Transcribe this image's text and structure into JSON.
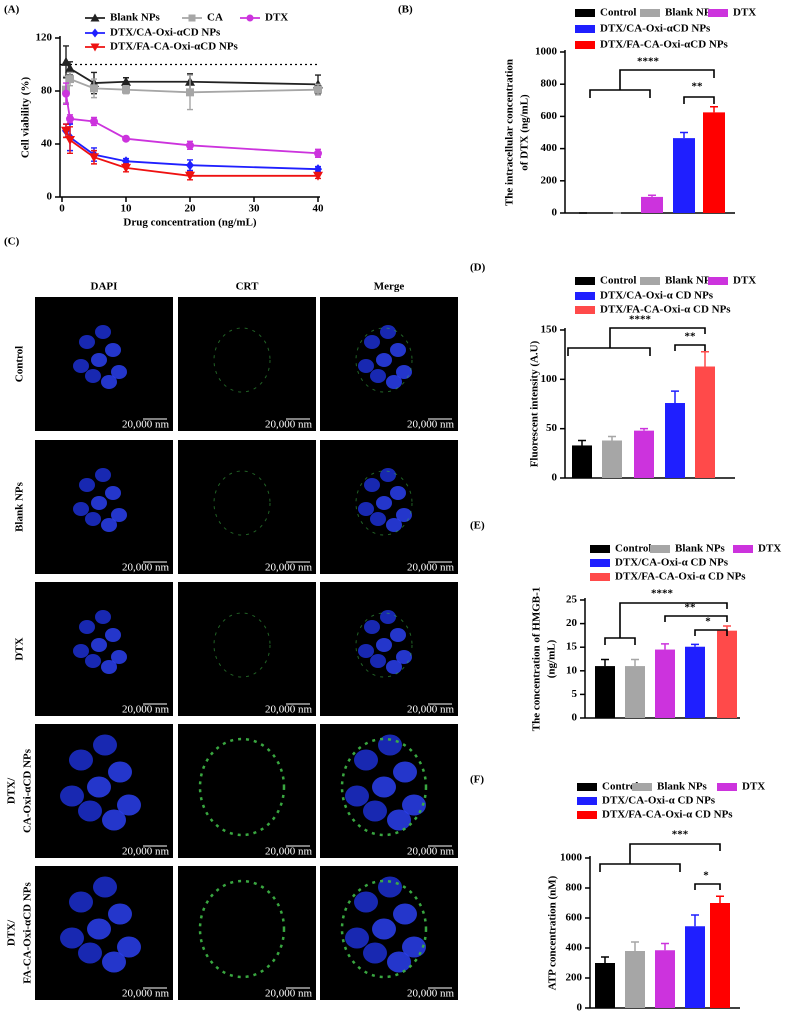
{
  "chart_data": [
    {
      "type": "line",
      "panel_label": "(A)",
      "xlabel": "Drug concentration (ng/mL)",
      "ylabel": "Cell viability (%)",
      "x": [
        0.625,
        1.25,
        5,
        10,
        20,
        40
      ],
      "xlim": [
        0,
        40
      ],
      "xticks": [
        0,
        10,
        20,
        30,
        40
      ],
      "ylim": [
        0,
        120
      ],
      "yticks": [
        0,
        40,
        80,
        120
      ],
      "reference_line": 100,
      "series": [
        {
          "name": "Blank NPs",
          "color": "#222222",
          "marker": "triangle",
          "values": [
            102,
            97,
            86,
            87,
            87,
            85
          ],
          "errors": [
            12,
            5,
            8,
            3,
            6,
            7
          ]
        },
        {
          "name": "CA",
          "color": "#a6a6a6",
          "marker": "square",
          "values": [
            81,
            89,
            82,
            81,
            79,
            81
          ],
          "errors": [
            10,
            5,
            7,
            3,
            13,
            4
          ]
        },
        {
          "name": "DTX",
          "color": "#cc33dd",
          "marker": "circle",
          "values": [
            78,
            59,
            57,
            44,
            39,
            33
          ],
          "errors": [
            8,
            3,
            3,
            1,
            3,
            3
          ]
        },
        {
          "name": "DTX/CA-Oxi-αCD NPs",
          "color": "#1f1fff",
          "marker": "diamond",
          "values": [
            50,
            45,
            32,
            27,
            24,
            21
          ],
          "errors": [
            5,
            10,
            5,
            2,
            4,
            2
          ]
        },
        {
          "name": "DTX/FA-CA-Oxi-αCD NPs",
          "color": "#ee1111",
          "marker": "triangle-down",
          "values": [
            50,
            43,
            30,
            22,
            16,
            16
          ],
          "errors": [
            5,
            10,
            5,
            3,
            3,
            2
          ]
        }
      ]
    },
    {
      "type": "bar",
      "panel_label": "(B)",
      "ylabel": [
        "The intracellular concentration",
        "of DTX (ng/mL)"
      ],
      "ylim": [
        0,
        1000
      ],
      "yticks": [
        0,
        200,
        400,
        600,
        800,
        1000
      ],
      "annotations": [
        "****",
        "**"
      ],
      "series": [
        {
          "name": "Control",
          "color": "#000000",
          "values": [
            0
          ],
          "errors": [
            0
          ]
        },
        {
          "name": "Blank NPs",
          "color": "#a6a6a6",
          "values": [
            0
          ],
          "errors": [
            0
          ]
        },
        {
          "name": "DTX",
          "color": "#cc33dd",
          "values": [
            100
          ],
          "errors": [
            10
          ]
        },
        {
          "name": "DTX/CA-Oxi-αCD NPs",
          "color": "#1f1fff",
          "values": [
            465
          ],
          "errors": [
            35
          ]
        },
        {
          "name": "DTX/FA-CA-Oxi-αCD NPs",
          "color": "#ff0000",
          "values": [
            625
          ],
          "errors": [
            35
          ]
        }
      ]
    },
    {
      "type": "bar",
      "panel_label": "(D)",
      "ylabel": "Fluorescent intensity (A.U)",
      "ylim": [
        0,
        150
      ],
      "yticks": [
        0,
        50,
        100,
        150
      ],
      "annotations": [
        "****",
        "**"
      ],
      "series": [
        {
          "name": "Control",
          "color": "#000000",
          "values": [
            33
          ],
          "errors": [
            5
          ]
        },
        {
          "name": "Blank NPs",
          "color": "#a6a6a6",
          "values": [
            38
          ],
          "errors": [
            4
          ]
        },
        {
          "name": "DTX",
          "color": "#cc33dd",
          "values": [
            48
          ],
          "errors": [
            2
          ]
        },
        {
          "name": "DTX/CA-Oxi-α CD NPs",
          "color": "#1f1fff",
          "values": [
            76
          ],
          "errors": [
            12
          ]
        },
        {
          "name": "DTX/FA-CA-Oxi-α CD NPs",
          "color": "#ff4a4a",
          "values": [
            113
          ],
          "errors": [
            15
          ]
        }
      ]
    },
    {
      "type": "bar",
      "panel_label": "(E)",
      "ylabel": [
        "The concentration of HMGB-1",
        "(ng/mL)"
      ],
      "ylim": [
        0,
        25
      ],
      "yticks": [
        0,
        5,
        10,
        15,
        20,
        25
      ],
      "annotations": [
        "****",
        "**",
        "*"
      ],
      "series": [
        {
          "name": "Control",
          "color": "#000000",
          "values": [
            11
          ],
          "errors": [
            1.4
          ]
        },
        {
          "name": "Blank NPs",
          "color": "#a6a6a6",
          "values": [
            11
          ],
          "errors": [
            1.4
          ]
        },
        {
          "name": "DTX",
          "color": "#cc33dd",
          "values": [
            14.5
          ],
          "errors": [
            1.2
          ]
        },
        {
          "name": "DTX/CA-Oxi-α CD NPs",
          "color": "#1f1fff",
          "values": [
            15.1
          ],
          "errors": [
            0.5
          ]
        },
        {
          "name": "DTX/FA-CA-Oxi-α CD NPs",
          "color": "#ff4a4a",
          "values": [
            18.5
          ],
          "errors": [
            1
          ]
        }
      ]
    },
    {
      "type": "bar",
      "panel_label": "(F)",
      "ylabel": "ATP concentration (nM)",
      "ylim": [
        0,
        1000
      ],
      "yticks": [
        0,
        200,
        400,
        600,
        800,
        1000
      ],
      "annotations": [
        "***",
        "*"
      ],
      "series": [
        {
          "name": "Control",
          "color": "#000000",
          "values": [
            300
          ],
          "errors": [
            40
          ]
        },
        {
          "name": "Blank NPs",
          "color": "#a6a6a6",
          "values": [
            380
          ],
          "errors": [
            60
          ]
        },
        {
          "name": "DTX",
          "color": "#cc33dd",
          "values": [
            385
          ],
          "errors": [
            45
          ]
        },
        {
          "name": "DTX/CA-Oxi-α CD NPs",
          "color": "#1f1fff",
          "values": [
            545
          ],
          "errors": [
            75
          ]
        },
        {
          "name": "DTX/FA-CA-Oxi-α CD NPs",
          "color": "#ff0000",
          "values": [
            700
          ],
          "errors": [
            45
          ]
        }
      ]
    }
  ],
  "microscopy": {
    "panel_label": "(C)",
    "columns": [
      "DAPI",
      "CRT",
      "Merge"
    ],
    "rows": [
      [
        "Control"
      ],
      [
        "Blank NPs"
      ],
      [
        "DTX"
      ],
      [
        "DTX/",
        "CA-Oxi-αCD NPs"
      ],
      [
        "DTX/",
        "FA-CA-Oxi-αCD NPs"
      ]
    ],
    "scale_bar": "20,000 nm"
  }
}
